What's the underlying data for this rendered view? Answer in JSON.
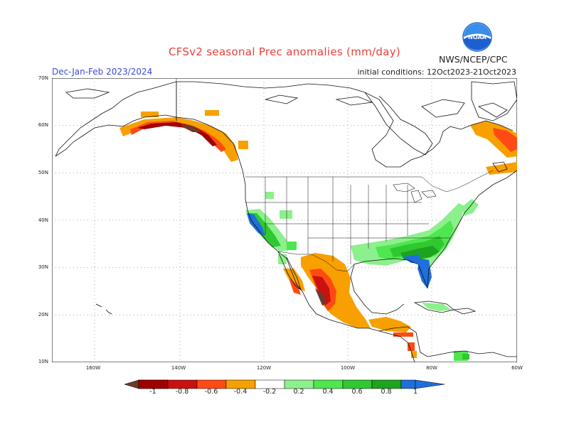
{
  "header": {
    "title": "CFSv2 seasonal Prec anomalies (mm/day)",
    "period": "Dec-Jan-Feb 2023/2024",
    "init_conditions": "initial conditions: 12Oct2023-21Oct2023",
    "agency": "NWS/NCEP/CPC",
    "logo_text": "NOAA"
  },
  "map": {
    "lon_range": [
      -190,
      -60
    ],
    "lat_range": [
      10,
      70
    ],
    "lat_labels": [
      "70N",
      "60N",
      "50N",
      "40N",
      "30N",
      "20N",
      "10N"
    ],
    "lon_labels": [
      "160W",
      "140W",
      "120W",
      "100W",
      "80W",
      "60W"
    ]
  },
  "colors": {
    "neg_1": "#6e3a2a",
    "neg_08": "#a00000",
    "neg_06": "#cc1010",
    "neg_04": "#ff4a14",
    "neg_02": "#f7a000",
    "pos_02": "#8cf08c",
    "pos_04": "#4fe64f",
    "pos_06": "#30c830",
    "pos_08": "#1da31d",
    "pos_1": "#1f6fdc",
    "title": "#e8403a",
    "period": "#3b4bd6"
  },
  "colorbar": {
    "ticks": [
      "-1",
      "-0.8",
      "-0.6",
      "-0.4",
      "-0.2",
      "0.2",
      "0.4",
      "0.6",
      "0.8",
      "1"
    ]
  }
}
